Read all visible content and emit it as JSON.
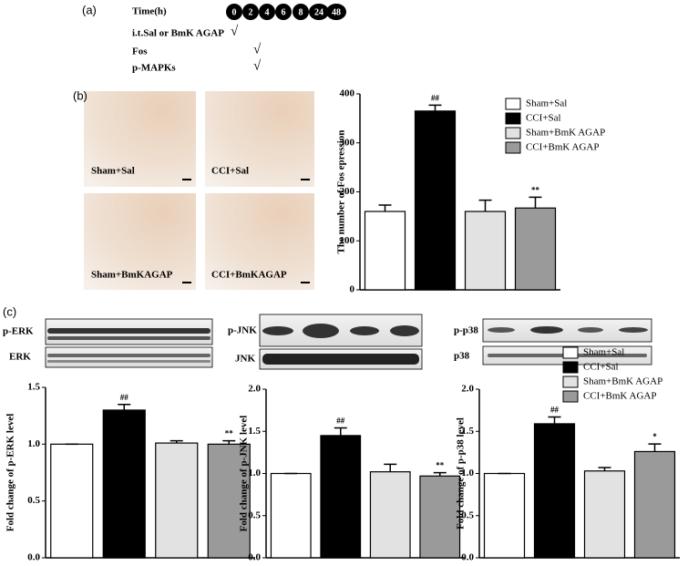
{
  "panel_a": {
    "label": "(a)",
    "time_label": "Time(h)",
    "timepoints": [
      "0",
      "2",
      "4",
      "6",
      "8",
      "24",
      "48"
    ],
    "rows": [
      {
        "label": "i.t.Sal or BmK AGAP",
        "mark": "√"
      },
      {
        "label": "Fos",
        "mark": "√"
      },
      {
        "label": "p-MAPKs",
        "mark": "√"
      }
    ]
  },
  "panel_b": {
    "label": "(b)",
    "images": [
      "Sham+Sal",
      "CCI+Sal",
      "Sham+BmKAGAP",
      "CCI+BmKAGAP"
    ]
  },
  "panel_c": {
    "label": "(c)",
    "blots": [
      "p-ERK",
      "ERK",
      "p-JNK",
      "JNK",
      "p-p38",
      "p38"
    ]
  },
  "chart_data": [
    {
      "type": "bar",
      "y_label": "The number of Fos epression",
      "ylim": [
        0,
        400
      ],
      "yticks": [
        0,
        100,
        200,
        300,
        400
      ],
      "legend": "right",
      "series": [
        {
          "name": "Sham+Sal",
          "color": "#ffffff",
          "values": [
            160
          ],
          "errors": [
            13
          ]
        },
        {
          "name": "CCI+Sal",
          "color": "#000000",
          "values": [
            365
          ],
          "errors": [
            12
          ],
          "annotation": "##"
        },
        {
          "name": "Sham+BmK AGAP",
          "color": "#e2e2e2",
          "values": [
            160
          ],
          "errors": [
            23
          ]
        },
        {
          "name": "CCI+BmK AGAP",
          "color": "#9a9a9a",
          "values": [
            167
          ],
          "errors": [
            22
          ],
          "annotation": "**"
        }
      ]
    },
    {
      "type": "bar",
      "y_label": "Fold change of p-ERK level",
      "ylim": [
        0,
        1.5
      ],
      "yticks": [
        {
          "value": 0,
          "label": "0.0"
        },
        {
          "value": 0.5,
          "label": "0.5"
        },
        {
          "value": 1,
          "label": "1.0"
        },
        {
          "value": 1.5,
          "label": "1.5"
        }
      ],
      "series": [
        {
          "name": "Sham+Sal",
          "color": "#ffffff",
          "values": [
            1.0
          ],
          "errors": [
            0
          ]
        },
        {
          "name": "CCI+Sal",
          "color": "#000000",
          "values": [
            1.3
          ],
          "errors": [
            0.05
          ],
          "annotation": "##"
        },
        {
          "name": "Sham+BmK AGAP",
          "color": "#e2e2e2",
          "values": [
            1.01
          ],
          "errors": [
            0.02
          ]
        },
        {
          "name": "CCI+BmK AGAP",
          "color": "#9a9a9a",
          "values": [
            1.0
          ],
          "errors": [
            0.03
          ],
          "annotation": "**"
        }
      ]
    },
    {
      "type": "bar",
      "y_label": "Fold change of p-JNK level",
      "ylim": [
        0,
        2.0
      ],
      "yticks": [
        {
          "value": 0,
          "label": "0.0"
        },
        {
          "value": 0.5,
          "label": "0.5"
        },
        {
          "value": 1,
          "label": "1.0"
        },
        {
          "value": 1.5,
          "label": "1.5"
        },
        {
          "value": 2,
          "label": "2.0"
        }
      ],
      "series": [
        {
          "name": "Sham+Sal",
          "color": "#ffffff",
          "values": [
            1.0
          ],
          "errors": [
            0
          ]
        },
        {
          "name": "CCI+Sal",
          "color": "#000000",
          "values": [
            1.45
          ],
          "errors": [
            0.09
          ],
          "annotation": "##"
        },
        {
          "name": "Sham+BmK AGAP",
          "color": "#e2e2e2",
          "values": [
            1.02
          ],
          "errors": [
            0.09
          ]
        },
        {
          "name": "CCI+BmK AGAP",
          "color": "#9a9a9a",
          "values": [
            0.97
          ],
          "errors": [
            0.04
          ],
          "annotation": "**"
        }
      ]
    },
    {
      "type": "bar",
      "y_label": "Fold change of p-p38 level",
      "ylim": [
        0,
        2.0
      ],
      "legend": "upper right",
      "yticks": [
        {
          "value": 0,
          "label": "0.0"
        },
        {
          "value": 0.5,
          "label": "0.5"
        },
        {
          "value": 1,
          "label": "1.0"
        },
        {
          "value": 1.5,
          "label": "1.5"
        },
        {
          "value": 2,
          "label": "2.0"
        }
      ],
      "series": [
        {
          "name": "Sham+Sal",
          "color": "#ffffff",
          "values": [
            1.0
          ],
          "errors": [
            0
          ]
        },
        {
          "name": "CCI+Sal",
          "color": "#000000",
          "values": [
            1.59
          ],
          "errors": [
            0.08
          ],
          "annotation": "##"
        },
        {
          "name": "Sham+BmK AGAP",
          "color": "#e2e2e2",
          "values": [
            1.03
          ],
          "errors": [
            0.04
          ]
        },
        {
          "name": "CCI+BmK AGAP",
          "color": "#9a9a9a",
          "values": [
            1.26
          ],
          "errors": [
            0.09
          ],
          "annotation": "*"
        }
      ]
    }
  ]
}
